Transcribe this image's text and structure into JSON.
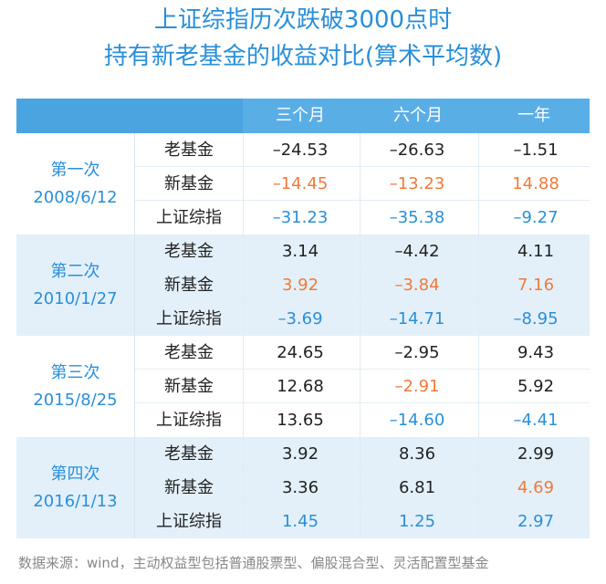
{
  "title_line1": "上证综指历次跌破3000点时",
  "title_line2": "持有新老基金的收益对比(算术平均数)",
  "colors": {
    "title": "#2a8fd8",
    "header_bg": "#5aaee6",
    "group_alt_bg": "#e3f0fa",
    "index_value": "#2a8fd8",
    "highlight": "#f07a3a",
    "default_text": "#222222"
  },
  "chart_data": {
    "type": "table",
    "columns": [
      "三个月",
      "六个月",
      "一年"
    ],
    "groups": [
      {
        "label": "第一次",
        "date": "2008/6/12",
        "rows": [
          {
            "name": "老基金",
            "values": [
              "–24.53",
              "–26.63",
              "–1.51"
            ],
            "colors": [
              "default",
              "default",
              "default"
            ]
          },
          {
            "name": "新基金",
            "values": [
              "–14.45",
              "–13.23",
              "14.88"
            ],
            "colors": [
              "highlight",
              "highlight",
              "highlight"
            ]
          },
          {
            "name": "上证综指",
            "values": [
              "–31.23",
              "–35.38",
              "–9.27"
            ],
            "colors": [
              "index",
              "index",
              "index"
            ]
          }
        ]
      },
      {
        "label": "第二次",
        "date": "2010/1/27",
        "rows": [
          {
            "name": "老基金",
            "values": [
              "3.14",
              "–4.42",
              "4.11"
            ],
            "colors": [
              "default",
              "default",
              "default"
            ]
          },
          {
            "name": "新基金",
            "values": [
              "3.92",
              "–3.84",
              "7.16"
            ],
            "colors": [
              "highlight",
              "highlight",
              "highlight"
            ]
          },
          {
            "name": "上证综指",
            "values": [
              "–3.69",
              "–14.71",
              "–8.95"
            ],
            "colors": [
              "index",
              "index",
              "index"
            ]
          }
        ]
      },
      {
        "label": "第三次",
        "date": "2015/8/25",
        "rows": [
          {
            "name": "老基金",
            "values": [
              "24.65",
              "–2.95",
              "9.43"
            ],
            "colors": [
              "default",
              "default",
              "default"
            ]
          },
          {
            "name": "新基金",
            "values": [
              "12.68",
              "–2.91",
              "5.92"
            ],
            "colors": [
              "default",
              "highlight",
              "default"
            ]
          },
          {
            "name": "上证综指",
            "values": [
              "13.65",
              "–14.60",
              "–4.41"
            ],
            "colors": [
              "default",
              "index",
              "index"
            ]
          }
        ]
      },
      {
        "label": "第四次",
        "date": "2016/1/13",
        "rows": [
          {
            "name": "老基金",
            "values": [
              "3.92",
              "8.36",
              "2.99"
            ],
            "colors": [
              "default",
              "default",
              "default"
            ]
          },
          {
            "name": "新基金",
            "values": [
              "3.36",
              "6.81",
              "4.69"
            ],
            "colors": [
              "default",
              "default",
              "highlight"
            ]
          },
          {
            "name": "上证综指",
            "values": [
              "1.45",
              "1.25",
              "2.97"
            ],
            "colors": [
              "index",
              "index",
              "index"
            ]
          }
        ]
      }
    ]
  },
  "source_note": "数据来源：wind，主动权益型包括普通股票型、偏股混合型、灵活配置型基金"
}
